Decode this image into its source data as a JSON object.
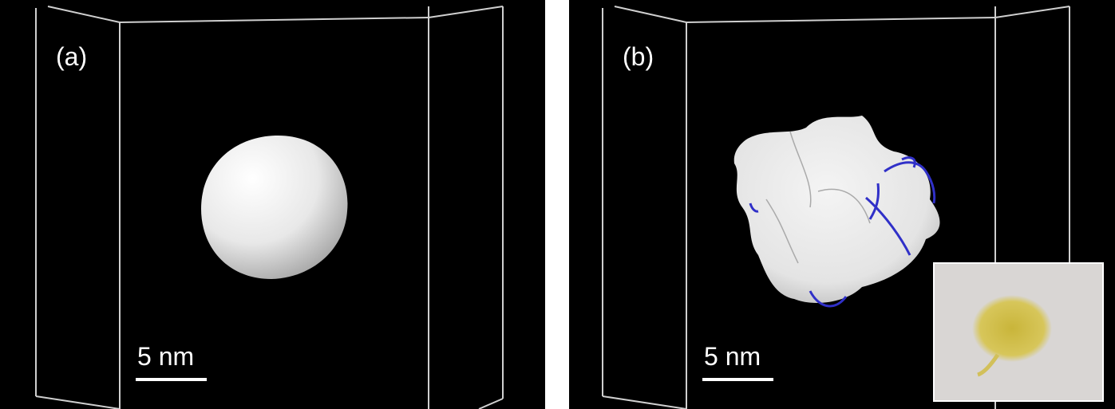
{
  "panels": [
    {
      "label": "(a)",
      "scale_bar": "5 nm"
    },
    {
      "label": "(b)",
      "scale_bar": "5 nm"
    }
  ]
}
